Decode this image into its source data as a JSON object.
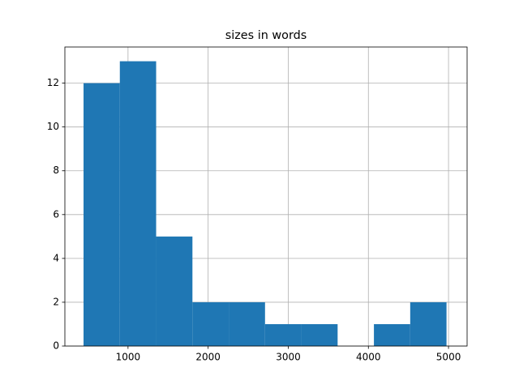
{
  "chart_data": {
    "type": "histogram",
    "title": "sizes in words",
    "bins": [
      445,
      898,
      1351,
      1804,
      2257,
      2710,
      3163,
      3616,
      4069,
      4522,
      4975
    ],
    "counts": [
      12,
      13,
      5,
      2,
      2,
      1,
      1,
      0,
      1,
      2
    ],
    "color": "#1f77b4",
    "xlim": [
      212,
      5232
    ],
    "xticks": [
      1000,
      2000,
      3000,
      4000,
      5000
    ],
    "ylim": [
      0,
      13.65
    ],
    "yticks": [
      0,
      2,
      4,
      6,
      8,
      10,
      12
    ],
    "grid": true
  }
}
